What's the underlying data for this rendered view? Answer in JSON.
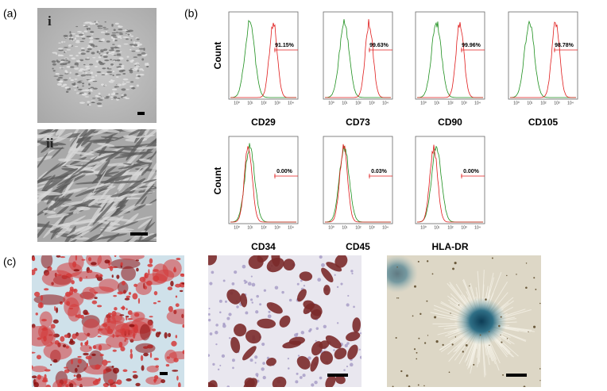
{
  "panel_a": {
    "label": "(a)",
    "images": [
      {
        "label": "i"
      },
      {
        "label": "ii"
      }
    ]
  },
  "panel_b": {
    "label": "(b)",
    "y_label": "Count",
    "x_tick_labels": [
      "10⁰",
      "10¹",
      "10²",
      "10³",
      "10⁴"
    ],
    "histograms": [
      {
        "marker": "CD29",
        "percent": "91.15%"
      },
      {
        "marker": "CD73",
        "percent": "99.63%"
      },
      {
        "marker": "CD90",
        "percent": "99.96%"
      },
      {
        "marker": "CD105",
        "percent": "98.78%"
      },
      {
        "marker": "CD34",
        "percent": "0.00%"
      },
      {
        "marker": "CD45",
        "percent": "0.03%"
      },
      {
        "marker": "HLA-DR",
        "percent": "0.00%"
      }
    ]
  },
  "panel_c": {
    "label": "(c)"
  }
}
